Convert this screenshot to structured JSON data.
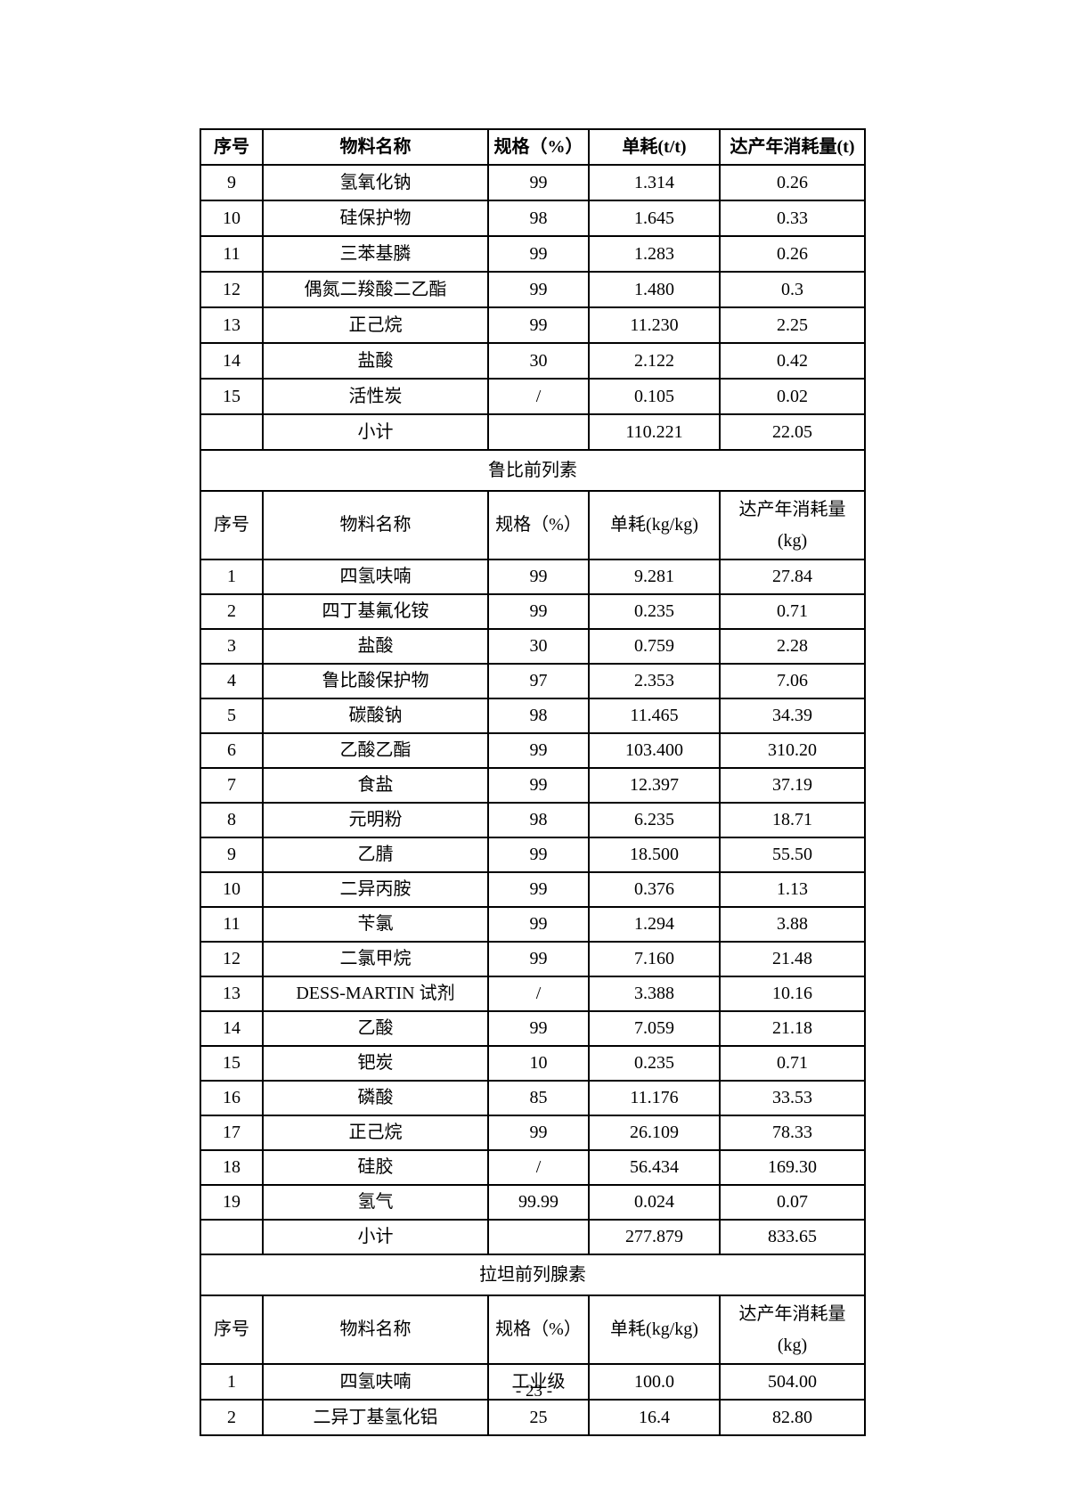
{
  "page": {
    "footer_page_number": "- 23 -"
  },
  "table": {
    "sections": [
      {
        "title": null,
        "header": {
          "bold": true,
          "tall": false,
          "cols": [
            "序号",
            "物料名称",
            "规格（%）",
            "单耗(t/t)",
            "达产年消耗量(t)"
          ]
        },
        "rows": [
          [
            "9",
            "氢氧化钠",
            "99",
            "1.314",
            "0.26"
          ],
          [
            "10",
            "硅保护物",
            "98",
            "1.645",
            "0.33"
          ],
          [
            "11",
            "三苯基膦",
            "99",
            "1.283",
            "0.26"
          ],
          [
            "12",
            "偶氮二羧酸二乙酯",
            "99",
            "1.480",
            "0.3"
          ],
          [
            "13",
            "正己烷",
            "99",
            "11.230",
            "2.25"
          ],
          [
            "14",
            "盐酸",
            "30",
            "2.122",
            "0.42"
          ],
          [
            "15",
            "活性炭",
            "/",
            "0.105",
            "0.02"
          ]
        ],
        "subtotal": [
          "",
          "小计",
          "",
          "110.221",
          "22.05"
        ]
      },
      {
        "title": "鲁比前列素",
        "header": {
          "bold": false,
          "tall": true,
          "cols": [
            "序号",
            "物料名称",
            "规格（%）",
            "单耗(kg/kg)",
            "达产年消耗量\n(kg)"
          ]
        },
        "rows": [
          [
            "1",
            "四氢呋喃",
            "99",
            "9.281",
            "27.84"
          ],
          [
            "2",
            "四丁基氟化铵",
            "99",
            "0.235",
            "0.71"
          ],
          [
            "3",
            "盐酸",
            "30",
            "0.759",
            "2.28"
          ],
          [
            "4",
            "鲁比酸保护物",
            "97",
            "2.353",
            "7.06"
          ],
          [
            "5",
            "碳酸钠",
            "98",
            "11.465",
            "34.39"
          ],
          [
            "6",
            "乙酸乙酯",
            "99",
            "103.400",
            "310.20"
          ],
          [
            "7",
            "食盐",
            "99",
            "12.397",
            "37.19"
          ],
          [
            "8",
            "元明粉",
            "98",
            "6.235",
            "18.71"
          ],
          [
            "9",
            "乙腈",
            "99",
            "18.500",
            "55.50"
          ],
          [
            "10",
            "二异丙胺",
            "99",
            "0.376",
            "1.13"
          ],
          [
            "11",
            "苄氯",
            "99",
            "1.294",
            "3.88"
          ],
          [
            "12",
            "二氯甲烷",
            "99",
            "7.160",
            "21.48"
          ],
          [
            "13",
            "DESS-MARTIN 试剂",
            "/",
            "3.388",
            "10.16"
          ],
          [
            "14",
            "乙酸",
            "99",
            "7.059",
            "21.18"
          ],
          [
            "15",
            "钯炭",
            "10",
            "0.235",
            "0.71"
          ],
          [
            "16",
            "磷酸",
            "85",
            "11.176",
            "33.53"
          ],
          [
            "17",
            "正己烷",
            "99",
            "26.109",
            "78.33"
          ],
          [
            "18",
            "硅胶",
            "/",
            "56.434",
            "169.30"
          ],
          [
            "19",
            "氢气",
            "99.99",
            "0.024",
            "0.07"
          ]
        ],
        "subtotal": [
          "",
          "小计",
          "",
          "277.879",
          "833.65"
        ]
      },
      {
        "title": "拉坦前列腺素",
        "header": {
          "bold": false,
          "tall": true,
          "cols": [
            "序号",
            "物料名称",
            "规格（%）",
            "单耗(kg/kg)",
            "达产年消耗量\n(kg)"
          ]
        },
        "rows": [
          [
            "1",
            "四氢呋喃",
            "工业级",
            "100.0",
            "504.00"
          ],
          [
            "2",
            "二异丁基氢化铝",
            "25",
            "16.4",
            "82.80"
          ]
        ],
        "subtotal": null
      }
    ]
  }
}
